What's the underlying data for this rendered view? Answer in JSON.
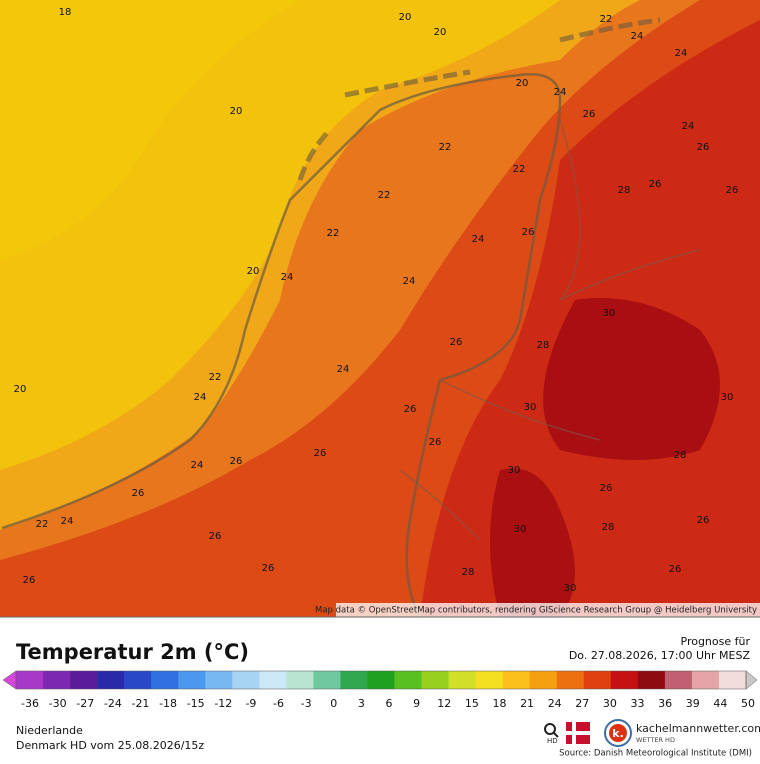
{
  "map": {
    "contour_labels": [
      "18",
      "20",
      "20",
      "22",
      "24",
      "24",
      "20",
      "24",
      "20",
      "26",
      "24",
      "22",
      "26",
      "22",
      "26",
      "28",
      "22",
      "26",
      "22",
      "24",
      "26",
      "20",
      "24",
      "24",
      "30",
      "26",
      "28",
      "24",
      "22",
      "20",
      "24",
      "26",
      "30",
      "30",
      "26",
      "26",
      "24",
      "26",
      "30",
      "28",
      "26",
      "26",
      "22",
      "24",
      "30",
      "28",
      "26",
      "26",
      "26",
      "26",
      "28",
      "30",
      "26"
    ],
    "attribution": "Map data © OpenStreetMap contributors, rendering GIScience Research Group @ Heidelberg University"
  },
  "panel": {
    "title": "Temperatur 2m (°C)",
    "forecast_label": "Prognose für",
    "forecast_time": "Do. 27.08.2026, 17:00 Uhr MESZ",
    "region": "Niederlande",
    "model_run": "Denmark HD vom 25.08.2026/15z",
    "hd_label": "HD",
    "brand": "kachelmannwetter.com",
    "brand_sub": "WETTER HD",
    "source": "Source: Danish Meteorological Institute (DMI)",
    "scale_ticks": [
      -36,
      -30,
      -27,
      -24,
      -21,
      -18,
      -15,
      -12,
      -9,
      -6,
      -3,
      0,
      3,
      6,
      9,
      12,
      15,
      18,
      21,
      24,
      27,
      30,
      33,
      36,
      39,
      44,
      50
    ],
    "scale_colors": [
      "#d848d8",
      "#a838c8",
      "#7c28b0",
      "#5a1c98",
      "#2a2aa8",
      "#2848c8",
      "#3070e0",
      "#4c98ee",
      "#78b8f2",
      "#a8d4f4",
      "#cce8f4",
      "#b8e4d0",
      "#70c8a0",
      "#30a850",
      "#20a020",
      "#58c020",
      "#98d020",
      "#d0e028",
      "#f4e020",
      "#f8c018",
      "#f4a010",
      "#ec7010",
      "#e04010",
      "#c41010",
      "#8c0a10",
      "#c06070",
      "#e4a4a8",
      "#f2dcdc",
      "#c8c8c8"
    ]
  }
}
